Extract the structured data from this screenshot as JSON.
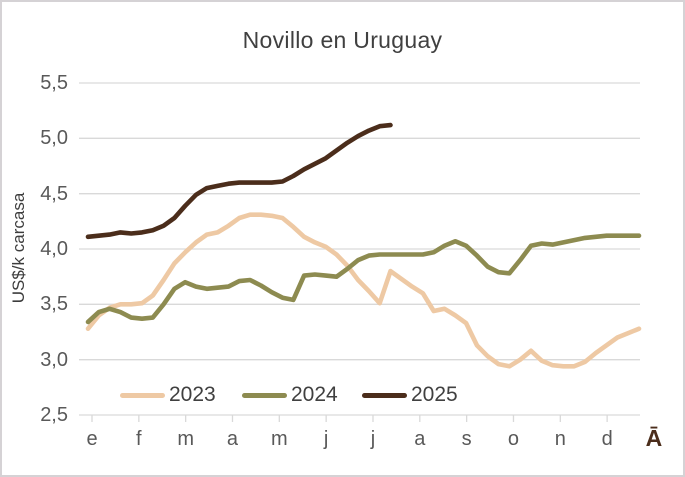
{
  "window": {
    "background_color": "#FFFFFF",
    "border_color": "#D5D2D5"
  },
  "chart_data": {
    "type": "line",
    "title": "Novillo en Uruguay",
    "ylabel": "US$/k carcasa",
    "xlabel": "",
    "ylim": [
      2.5,
      5.5
    ],
    "grid": true,
    "gridline_color": "#D9D9D9",
    "tick_label_color": "#595959",
    "title_color": "#404040",
    "frequency": "weekly",
    "legend_position": "bottom-inside",
    "y_ticks": [
      {
        "value": 5.5,
        "label": "5,5"
      },
      {
        "value": 5.0,
        "label": "5,0"
      },
      {
        "value": 4.5,
        "label": "4,5"
      },
      {
        "value": 4.0,
        "label": "4,0"
      },
      {
        "value": 3.5,
        "label": "3,5"
      },
      {
        "value": 3.0,
        "label": "3,0"
      },
      {
        "value": 2.5,
        "label": "2,5"
      }
    ],
    "x_tick_labels": [
      "e",
      "f",
      "m",
      "a",
      "m",
      "j",
      "j",
      "a",
      "s",
      "o",
      "n",
      "d"
    ],
    "x_overflow_label": "Ā",
    "x_overflow_label_color": "#4B2D1B",
    "series": [
      {
        "name": "2023",
        "color": "#EEC9A4",
        "points_per_year": 52,
        "values": [
          3.28,
          3.4,
          3.47,
          3.5,
          3.5,
          3.51,
          3.58,
          3.72,
          3.87,
          3.97,
          4.06,
          4.13,
          4.15,
          4.21,
          4.28,
          4.31,
          4.31,
          4.3,
          4.28,
          4.2,
          4.11,
          4.06,
          4.02,
          3.95,
          3.85,
          3.72,
          3.62,
          3.51,
          3.8,
          3.73,
          3.66,
          3.6,
          3.44,
          3.46,
          3.4,
          3.33,
          3.13,
          3.03,
          2.96,
          2.94,
          3.0,
          3.08,
          2.99,
          2.95,
          2.94,
          2.94,
          2.98,
          3.06,
          3.13,
          3.2,
          3.24,
          3.28
        ]
      },
      {
        "name": "2024",
        "color": "#8D8B50",
        "points_per_year": 52,
        "values": [
          3.34,
          3.43,
          3.46,
          3.43,
          3.38,
          3.37,
          3.38,
          3.5,
          3.64,
          3.7,
          3.66,
          3.64,
          3.65,
          3.66,
          3.71,
          3.72,
          3.67,
          3.61,
          3.56,
          3.54,
          3.76,
          3.77,
          3.76,
          3.75,
          3.82,
          3.9,
          3.94,
          3.95,
          3.95,
          3.95,
          3.95,
          3.95,
          3.97,
          4.03,
          4.07,
          4.03,
          3.94,
          3.84,
          3.79,
          3.78,
          3.9,
          4.03,
          4.05,
          4.04,
          4.06,
          4.08,
          4.1,
          4.11,
          4.12,
          4.12,
          4.12,
          4.12
        ]
      },
      {
        "name": "2025",
        "color": "#4B2D1B",
        "points_per_year": 52,
        "values": [
          4.11,
          4.12,
          4.13,
          4.15,
          4.14,
          4.15,
          4.17,
          4.21,
          4.28,
          4.39,
          4.49,
          4.55,
          4.57,
          4.59,
          4.6,
          4.6,
          4.6,
          4.6,
          4.61,
          4.66,
          4.72,
          4.77,
          4.82,
          4.89,
          4.96,
          5.02,
          5.07,
          5.11,
          5.12
        ]
      }
    ]
  }
}
